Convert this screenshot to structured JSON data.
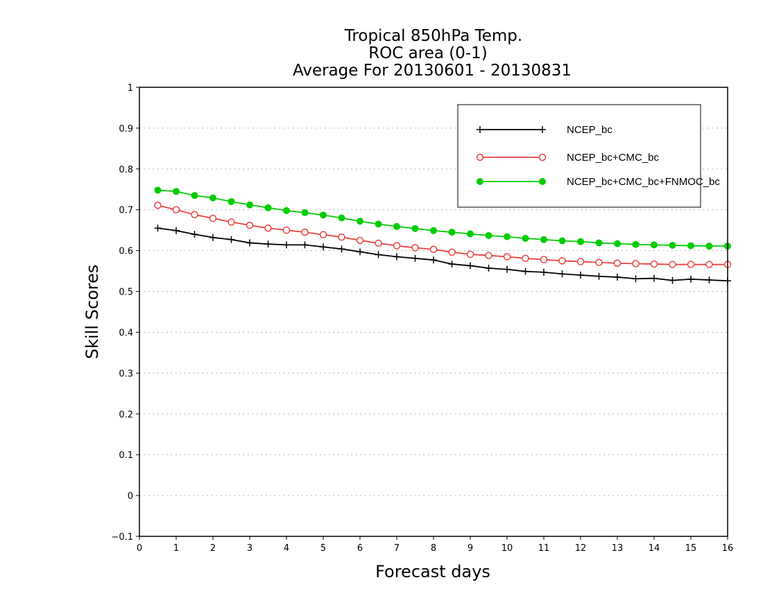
{
  "chart_data": {
    "type": "line",
    "title_lines": [
      "Tropical 850hPa Temp.",
      "ROC area (0-1)",
      "Average For 20130601 - 20130831"
    ],
    "xlabel": "Forecast days",
    "ylabel": "Skill Scores",
    "xlim": [
      0,
      16
    ],
    "ylim": [
      -0.1,
      1
    ],
    "x_ticks": [
      "0",
      "1",
      "2",
      "3",
      "4",
      "5",
      "6",
      "7",
      "8",
      "9",
      "10",
      "11",
      "12",
      "13",
      "14",
      "15",
      "16"
    ],
    "y_ticks": [
      "−0.1",
      "0",
      "0.1",
      "0.2",
      "0.3",
      "0.4",
      "0.5",
      "0.6",
      "0.7",
      "0.8",
      "0.9",
      "1"
    ],
    "grid": "horizontal dotted",
    "legend_position": "top-right",
    "x": [
      0.5,
      1,
      1.5,
      2,
      2.5,
      3,
      3.5,
      4,
      4.5,
      5,
      5.5,
      6,
      6.5,
      7,
      7.5,
      8,
      8.5,
      9,
      9.5,
      10,
      10.5,
      11,
      11.5,
      12,
      12.5,
      13,
      13.5,
      14,
      14.5,
      15,
      15.5,
      16
    ],
    "series": [
      {
        "name": "NCEP_bc",
        "color": "#000000",
        "marker": "plus",
        "values": [
          0.655,
          0.649,
          0.64,
          0.632,
          0.627,
          0.619,
          0.616,
          0.614,
          0.614,
          0.609,
          0.604,
          0.597,
          0.59,
          0.585,
          0.581,
          0.577,
          0.567,
          0.563,
          0.557,
          0.554,
          0.549,
          0.547,
          0.543,
          0.54,
          0.537,
          0.535,
          0.531,
          0.532,
          0.527,
          0.53,
          0.528,
          0.526
        ]
      },
      {
        "name": "NCEP_bc+CMC_bc",
        "color": "#e8423e",
        "marker": "open-circle",
        "values": [
          0.711,
          0.7,
          0.688,
          0.679,
          0.67,
          0.662,
          0.655,
          0.65,
          0.645,
          0.639,
          0.633,
          0.625,
          0.618,
          0.612,
          0.607,
          0.603,
          0.596,
          0.591,
          0.588,
          0.585,
          0.581,
          0.578,
          0.575,
          0.573,
          0.571,
          0.569,
          0.568,
          0.567,
          0.566,
          0.566,
          0.566,
          0.566
        ]
      },
      {
        "name": "NCEP_bc+CMC_bc+FNMOC_bc",
        "color": "#00cc00",
        "marker": "filled-circle",
        "values": [
          0.748,
          0.745,
          0.735,
          0.729,
          0.72,
          0.712,
          0.705,
          0.698,
          0.693,
          0.687,
          0.68,
          0.672,
          0.665,
          0.659,
          0.654,
          0.649,
          0.645,
          0.641,
          0.637,
          0.634,
          0.63,
          0.627,
          0.624,
          0.622,
          0.619,
          0.617,
          0.615,
          0.614,
          0.613,
          0.612,
          0.611,
          0.611
        ]
      }
    ]
  }
}
